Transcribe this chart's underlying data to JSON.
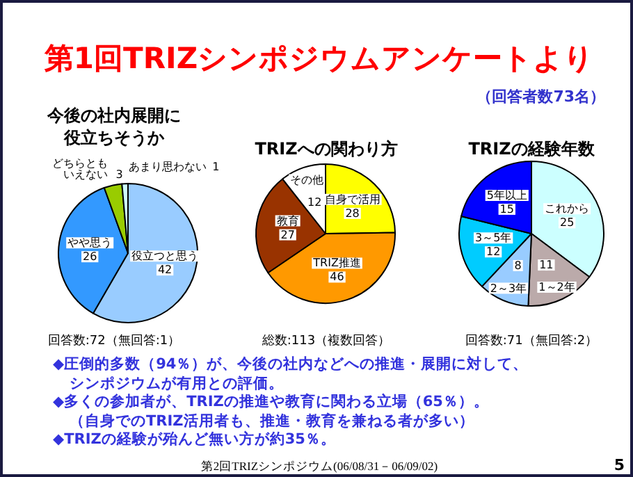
{
  "chart_data": [
    {
      "type": "other",
      "title": "第1回TRIZシンポジウムアンケートより",
      "subtitle": "（回答者数73名）"
    },
    {
      "type": "pie",
      "title": "今後の社内展開に役立ちそうか",
      "categories": [
        "役立つと思う",
        "やや思う",
        "どちらともいえない",
        "あまり思わない"
      ],
      "values": [
        42,
        26,
        3,
        1
      ],
      "colors": [
        "#99ccff",
        "#3399ff",
        "#99cc00",
        "#ccffff"
      ],
      "data_labels": true,
      "annotations": [
        "回答数:72（無回答:1）"
      ]
    },
    {
      "type": "pie",
      "title": "TRIZへの関わり方",
      "categories": [
        "自身で活用",
        "TRIZ推進",
        "教育",
        "その他"
      ],
      "values": [
        28,
        46,
        27,
        12
      ],
      "colors": [
        "#ffff00",
        "#ff9900",
        "#993300",
        "#ffffff"
      ],
      "data_labels": true,
      "annotations": [
        "総数:113（複数回答）"
      ]
    },
    {
      "type": "pie",
      "title": "TRIZの経験年数",
      "categories": [
        "これから",
        "1～2年",
        "2～3年",
        "3～5年",
        "5年以上"
      ],
      "values": [
        25,
        11,
        8,
        12,
        15
      ],
      "colors": [
        "#ccffff",
        "#bbaaaa",
        "#99ccff",
        "#00ccff",
        "#0000ff"
      ],
      "data_labels": true,
      "annotations": [
        "回答数:71（無回答:2）"
      ]
    },
    {
      "type": "other",
      "annotations": [
        "◆圧倒的多数（94％）が、今後の社内などへの推進・展開に対して、",
        "シンポジウムが有用との評価。",
        "◆多くの参加者が、TRIZの推進や教育に関わる立場（65％）。",
        "（自身でのTRIZ活用者も、推進・教育を兼ねる者が多い）",
        "◆TRIZの経験が殆んど無い方が約35％。",
        "第2回TRIZシンポジウム(06/08/31－06/09/02)",
        "5"
      ]
    }
  ]
}
